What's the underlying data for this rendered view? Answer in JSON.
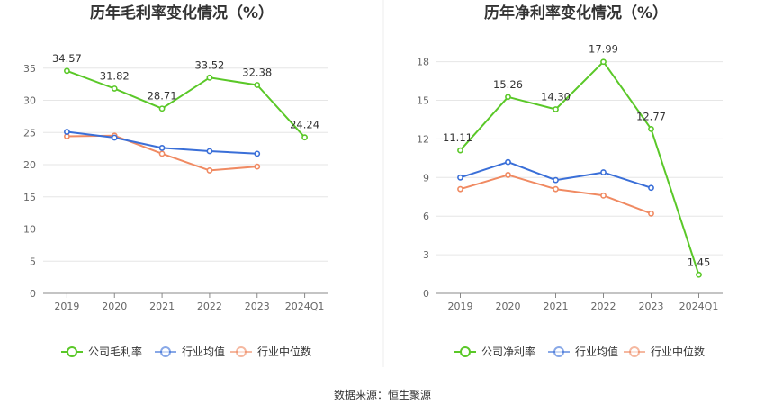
{
  "source_label": "数据来源：恒生聚源",
  "colors": {
    "company": "#5ac828",
    "industry_avg": "#3a6fd8",
    "industry_median": "#f08a62",
    "grid": "#e6e6e6",
    "axis": "#888888"
  },
  "chart_data": [
    {
      "type": "line",
      "title": "历年毛利率变化情况（%）",
      "categories": [
        "2019",
        "2020",
        "2021",
        "2022",
        "2023",
        "2024Q1"
      ],
      "ylim": [
        0,
        40
      ],
      "yticks": [
        0,
        5,
        10,
        15,
        20,
        25,
        30,
        35
      ],
      "grid": true,
      "legend_position": "bottom",
      "series": [
        {
          "name": "公司毛利率",
          "key": "company",
          "values": [
            34.57,
            31.82,
            28.71,
            33.52,
            32.38,
            24.24
          ],
          "labels": [
            "34.57",
            "31.82",
            "28.71",
            "33.52",
            "32.38",
            "24.24"
          ]
        },
        {
          "name": "行业均值",
          "key": "industry_avg",
          "values": [
            25.1,
            24.2,
            22.6,
            22.1,
            21.7,
            null
          ]
        },
        {
          "name": "行业中位数",
          "key": "industry_median",
          "values": [
            24.4,
            24.5,
            21.7,
            19.1,
            19.7,
            null
          ]
        }
      ]
    },
    {
      "type": "line",
      "title": "历年净利率变化情况（%）",
      "categories": [
        "2019",
        "2020",
        "2021",
        "2022",
        "2023",
        "2024Q1"
      ],
      "ylim": [
        0,
        20
      ],
      "yticks": [
        0,
        3,
        6,
        9,
        12,
        15,
        18
      ],
      "grid": true,
      "legend_position": "bottom",
      "series": [
        {
          "name": "公司净利率",
          "key": "company",
          "values": [
            11.11,
            15.26,
            14.3,
            17.99,
            12.77,
            1.45
          ],
          "labels": [
            "11.11",
            "15.26",
            "14.30",
            "17.99",
            "12.77",
            "1.45"
          ]
        },
        {
          "name": "行业均值",
          "key": "industry_avg",
          "values": [
            9.0,
            10.2,
            8.8,
            9.4,
            8.2,
            null
          ]
        },
        {
          "name": "行业中位数",
          "key": "industry_median",
          "values": [
            8.1,
            9.2,
            8.1,
            7.6,
            6.2,
            null
          ]
        }
      ]
    }
  ]
}
